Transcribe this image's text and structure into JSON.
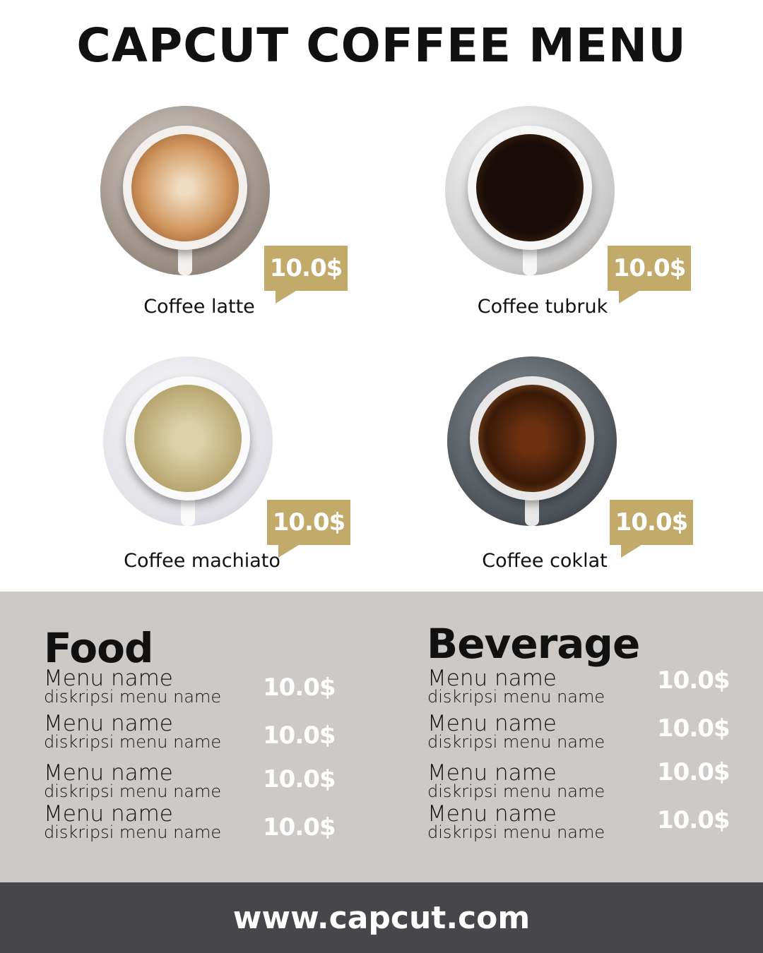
{
  "title": "CAPCUT COFFEE MENU",
  "colors": {
    "accent": "#c2ab6a",
    "lower_bg": "#cdc9c6",
    "footer_bg": "#47464b"
  },
  "coffees": [
    {
      "name": "Coffee latte",
      "price": "10.0$"
    },
    {
      "name": "Coffee tubruk",
      "price": "10.0$"
    },
    {
      "name": "Coffee machiato",
      "price": "10.0$"
    },
    {
      "name": "Coffee coklat",
      "price": "10.0$"
    }
  ],
  "food": {
    "heading": "Food",
    "items": [
      {
        "name": "Menu name",
        "desc": "diskripsi menu name",
        "price": "10.0$"
      },
      {
        "name": "Menu name",
        "desc": "diskripsi menu name",
        "price": "10.0$"
      },
      {
        "name": "Menu name",
        "desc": "diskripsi menu name",
        "price": "10.0$"
      },
      {
        "name": "Menu name",
        "desc": "diskripsi menu name",
        "price": "10.0$"
      }
    ]
  },
  "beverage": {
    "heading": "Beverage",
    "items": [
      {
        "name": "Menu name",
        "desc": "diskripsi menu name",
        "price": "10.0$"
      },
      {
        "name": "Menu name",
        "desc": "diskripsi menu name",
        "price": "10.0$"
      },
      {
        "name": "Menu name",
        "desc": "diskripsi menu name",
        "price": "10.0$"
      },
      {
        "name": "Menu name",
        "desc": "diskripsi menu name",
        "price": "10.0$"
      }
    ]
  },
  "footer": {
    "url": "www.capcut.com"
  }
}
